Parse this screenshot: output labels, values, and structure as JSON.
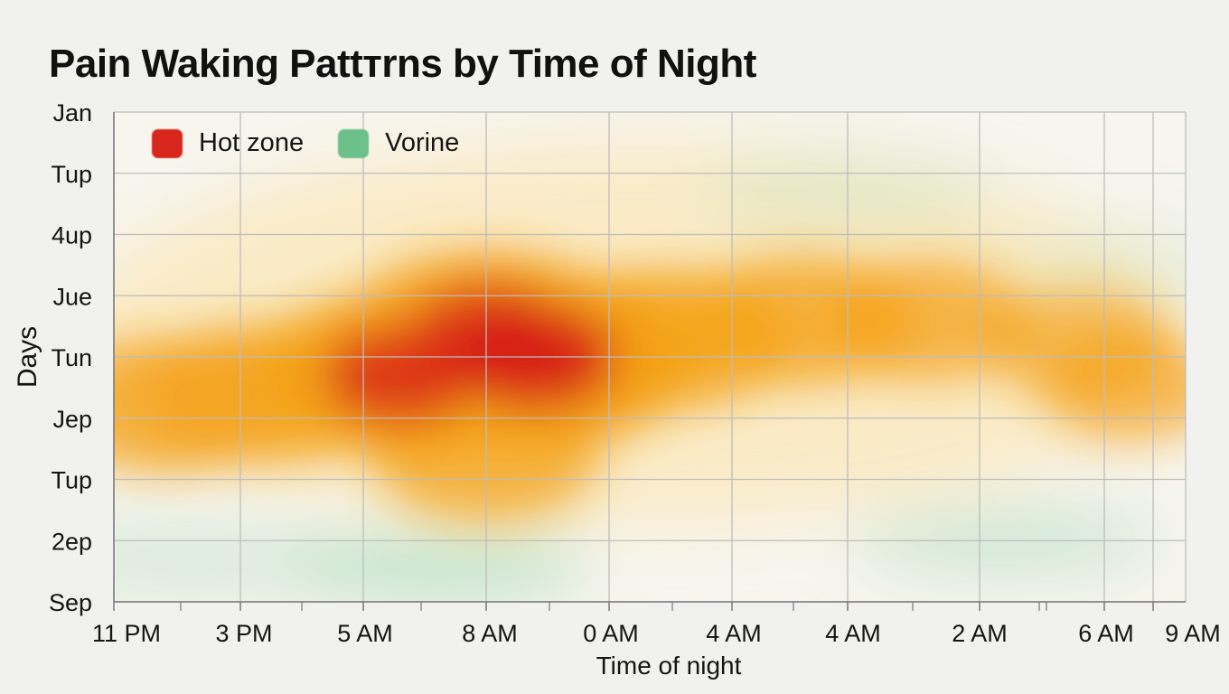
{
  "title": "Pain Waking Pattтrns by Time of Night",
  "colors": {
    "hot": "#d61b12",
    "warm": "#f4a21a",
    "mild": "#faeac4",
    "cool": "#9fd8b4",
    "legend_hot": "#d9261c",
    "legend_cool": "#6cc08a",
    "grid": "#bdbdbd",
    "axis": "#777777"
  },
  "chart_data": {
    "type": "heatmap",
    "title": "Pain Waking Pattтrns by Time of Night",
    "xlabel": "Time of night",
    "ylabel": "Days",
    "x_ticks": [
      "11 PM",
      "3 PM",
      "5 AM",
      "8 AM",
      "0 AM",
      "4 AM",
      "4 AM",
      "2 AM",
      "6 AM",
      "9 AM"
    ],
    "y_ticks": [
      "Jan",
      "Tup",
      "4up",
      "Jue",
      "Tun",
      "Jep",
      "Tup",
      "2ep",
      "Sep"
    ],
    "legend": [
      {
        "label": "Hot zone",
        "color": "#d9261c"
      },
      {
        "label": "Vorine",
        "color": "#6cc08a"
      }
    ],
    "legend_position": "top-left",
    "grid": true,
    "value_range": [
      0,
      1
    ],
    "hotspots": [
      {
        "x": 3.4,
        "y": 4.0,
        "intensity": 1.0
      },
      {
        "x": 2.3,
        "y": 4.3,
        "intensity": 0.85
      },
      {
        "x": 3.0,
        "y": 3.6,
        "intensity": 0.8
      },
      {
        "x": 1.2,
        "y": 4.6,
        "intensity": 0.6
      },
      {
        "x": 0.4,
        "y": 4.8,
        "intensity": 0.55
      },
      {
        "x": 4.5,
        "y": 3.7,
        "intensity": 0.6
      },
      {
        "x": 5.6,
        "y": 3.4,
        "intensity": 0.5
      },
      {
        "x": 6.6,
        "y": 3.4,
        "intensity": 0.42
      },
      {
        "x": 7.8,
        "y": 3.8,
        "intensity": 0.3
      },
      {
        "x": 8.6,
        "y": 4.5,
        "intensity": 0.28
      },
      {
        "x": 3.0,
        "y": 5.6,
        "intensity": 0.5
      }
    ],
    "cool_zones": [
      {
        "x": 2.6,
        "y": 7.4,
        "intensity": 0.6
      },
      {
        "x": 0.6,
        "y": 7.3,
        "intensity": 0.35
      },
      {
        "x": 7.2,
        "y": 7.0,
        "intensity": 0.45
      },
      {
        "x": 6.0,
        "y": 1.3,
        "intensity": 0.25
      },
      {
        "x": 9.0,
        "y": 2.5,
        "intensity": 0.2
      }
    ]
  }
}
